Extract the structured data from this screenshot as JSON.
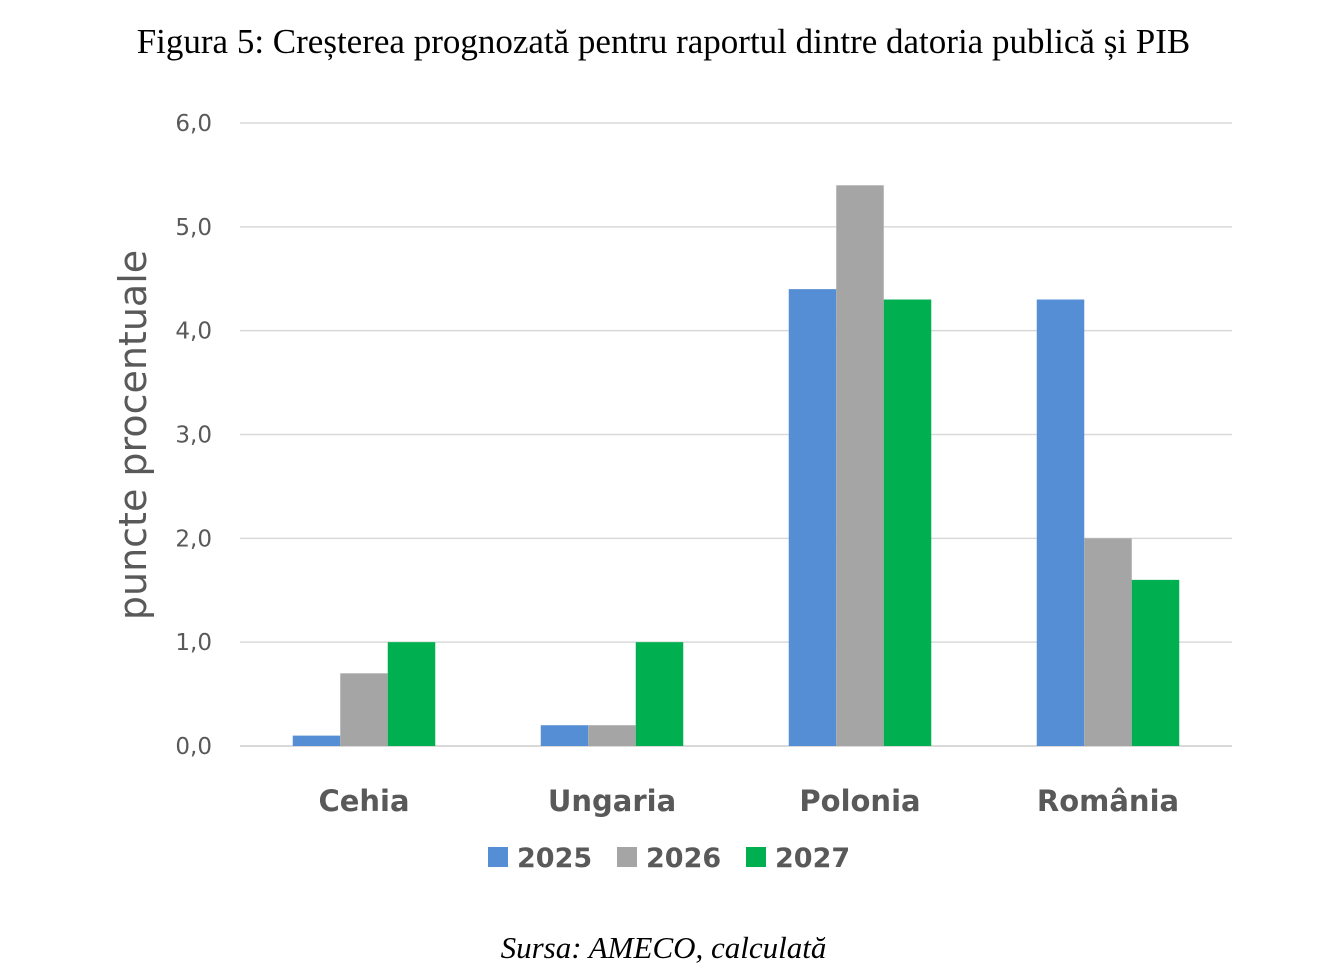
{
  "title": "Figura 5: Creșterea prognozată pentru raportul dintre datoria publică și PIB",
  "source": "Sursa: AMECO, calculată",
  "chart_data": {
    "type": "bar",
    "title": "Figura 5: Creșterea prognozată pentru raportul dintre datoria publică și PIB",
    "xlabel": "",
    "ylabel": "puncte procentuale",
    "ylim": [
      0,
      6
    ],
    "yticks": [
      "0,0",
      "1,0",
      "2,0",
      "3,0",
      "4,0",
      "5,0",
      "6,0"
    ],
    "grid": true,
    "legend_position": "bottom",
    "categories": [
      "Cehia",
      "Ungaria",
      "Polonia",
      "România"
    ],
    "series": [
      {
        "name": "2025",
        "color": "#558ED5",
        "values": [
          0.1,
          0.2,
          4.4,
          4.3
        ]
      },
      {
        "name": "2026",
        "color": "#A5A5A5",
        "values": [
          0.7,
          0.2,
          5.4,
          2.0
        ]
      },
      {
        "name": "2027",
        "color": "#00B050",
        "values": [
          1.0,
          1.0,
          4.3,
          1.6
        ]
      }
    ]
  }
}
